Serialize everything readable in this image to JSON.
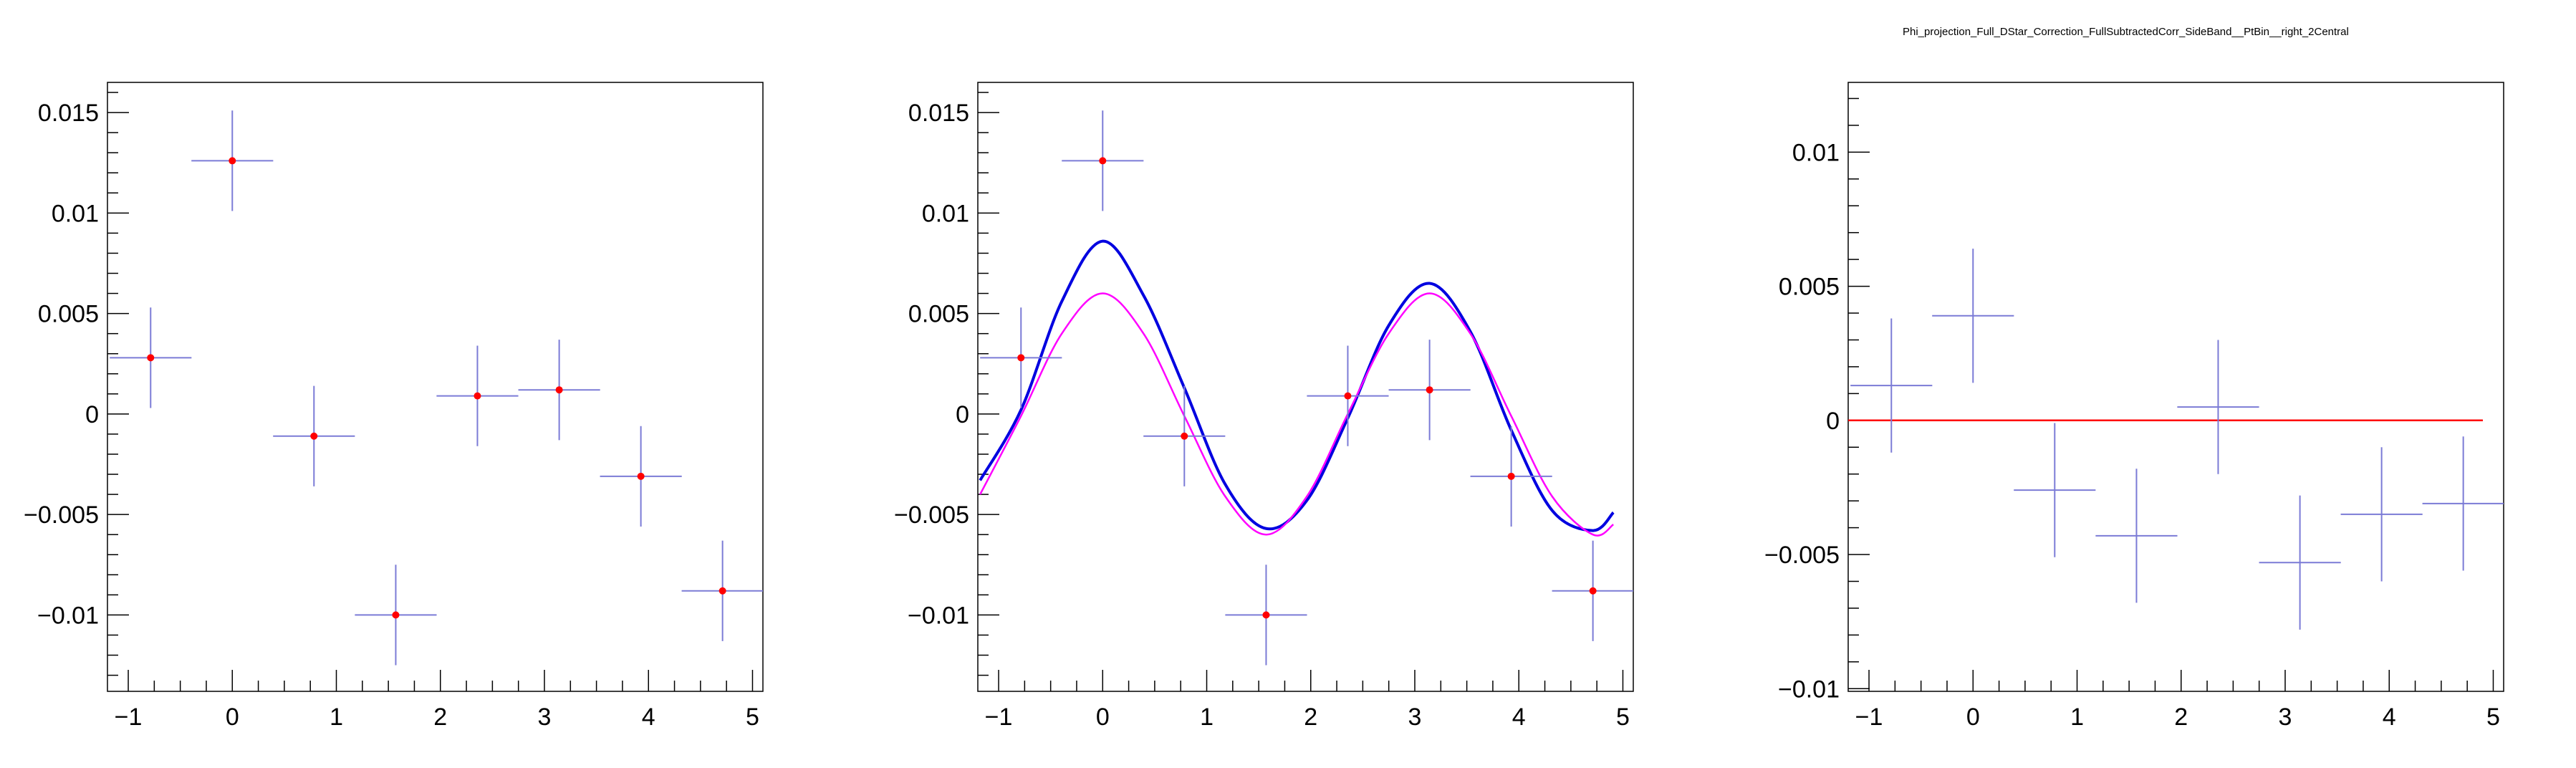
{
  "page_title": "Phi_projection_Full_DStar_Correction_FullSubtractedCorr_SideBand__PtBin__right_2Central",
  "colors": {
    "error_bar": "#7b7bd6",
    "marker": "#ff0000",
    "fit_total": "#0000e0",
    "fit_component": "#ff00ff",
    "zero_line": "#ff0000",
    "frame": "#000000"
  },
  "chart_data": [
    {
      "type": "scatter",
      "title": "",
      "xlabel": "",
      "ylabel": "",
      "xlim": [
        -1.2,
        5.1
      ],
      "ylim": [
        -0.0138,
        0.0165
      ],
      "xticks": [
        -1,
        0,
        1,
        2,
        3,
        4,
        5
      ],
      "xtick_labels": [
        "−1",
        "0",
        "1",
        "2",
        "3",
        "4",
        "5"
      ],
      "yticks": [
        -0.01,
        -0.005,
        0,
        0.005,
        0.01,
        0.015
      ],
      "ytick_labels": [
        "−0.01",
        "−0.005",
        "0",
        "0.005",
        "0.01",
        "0.015"
      ],
      "grid": false,
      "series": [
        {
          "x": [
            -0.785,
            0.0,
            0.785,
            1.571,
            2.356,
            3.142,
            3.927,
            4.712
          ],
          "y": [
            0.0028,
            0.0126,
            -0.0011,
            -0.01,
            0.0009,
            0.0012,
            -0.0031,
            -0.0088
          ],
          "xerr": 0.393,
          "yerr": [
            0.0025,
            0.0025,
            0.0025,
            0.0025,
            0.0025,
            0.0025,
            0.0025,
            0.0025
          ],
          "markers": true
        }
      ]
    },
    {
      "type": "line",
      "title": "",
      "xlabel": "",
      "ylabel": "",
      "xlim": [
        -1.2,
        5.1
      ],
      "ylim": [
        -0.0138,
        0.0165
      ],
      "xticks": [
        -1,
        0,
        1,
        2,
        3,
        4,
        5
      ],
      "xtick_labels": [
        "−1",
        "0",
        "1",
        "2",
        "3",
        "4",
        "5"
      ],
      "yticks": [
        -0.01,
        -0.005,
        0,
        0.005,
        0.01,
        0.015
      ],
      "ytick_labels": [
        "−0.01",
        "−0.005",
        "0",
        "0.005",
        "0.01",
        "0.015"
      ],
      "grid": false,
      "series": [
        {
          "x": [
            -0.785,
            0.0,
            0.785,
            1.571,
            2.356,
            3.142,
            3.927,
            4.712
          ],
          "y": [
            0.0028,
            0.0126,
            -0.0011,
            -0.01,
            0.0009,
            0.0012,
            -0.0031,
            -0.0088
          ],
          "xerr": 0.393,
          "yerr": [
            0.0025,
            0.0025,
            0.0025,
            0.0025,
            0.0025,
            0.0025,
            0.0025,
            0.0025
          ],
          "markers": true
        }
      ],
      "curves": [
        {
          "x": [
            -1.178,
            -0.785,
            -0.393,
            0.0,
            0.393,
            0.785,
            1.178,
            1.571,
            1.963,
            2.356,
            2.749,
            3.142,
            3.534,
            3.927,
            4.32,
            4.712,
            4.909
          ],
          "y": [
            -0.0033,
            0.0002,
            0.0056,
            0.0086,
            0.0059,
            0.0013,
            -0.0035,
            -0.0057,
            -0.0043,
            -0.0002,
            0.0044,
            0.0065,
            0.0041,
            -0.0008,
            -0.0048,
            -0.0058,
            -0.0049
          ],
          "color_key": "fit_total",
          "width": 4
        },
        {
          "x": [
            -1.178,
            -0.785,
            -0.393,
            0.0,
            0.393,
            0.785,
            1.178,
            1.571,
            1.963,
            2.356,
            2.749,
            3.142,
            3.534,
            3.927,
            4.32,
            4.712,
            4.909
          ],
          "y": [
            -0.004,
            -0.0001,
            0.004,
            0.006,
            0.004,
            -0.0001,
            -0.0041,
            -0.006,
            -0.0041,
            0.0,
            0.004,
            0.006,
            0.004,
            -0.0001,
            -0.0041,
            -0.006,
            -0.0055
          ],
          "color_key": "fit_component",
          "width": 2.5
        }
      ]
    },
    {
      "type": "scatter",
      "title": "",
      "xlabel": "",
      "ylabel": "",
      "xlim": [
        -1.2,
        5.1
      ],
      "ylim": [
        -0.0101,
        0.0126
      ],
      "xticks": [
        -1,
        0,
        1,
        2,
        3,
        4,
        5
      ],
      "xtick_labels": [
        "−1",
        "0",
        "1",
        "2",
        "3",
        "4",
        "5"
      ],
      "yticks": [
        -0.01,
        -0.005,
        0,
        0.005,
        0.01
      ],
      "ytick_labels": [
        "−0.01",
        "−0.005",
        "0",
        "0.005",
        "0.01"
      ],
      "grid": false,
      "hline": {
        "y": 0,
        "x_from": -1.2,
        "x_to": 4.9,
        "color_key": "zero_line"
      },
      "series": [
        {
          "x": [
            -0.785,
            0.0,
            0.785,
            1.571,
            2.356,
            3.142,
            3.927,
            4.712
          ],
          "y": [
            0.0013,
            0.0039,
            -0.0026,
            -0.0043,
            0.0005,
            -0.0053,
            -0.0035,
            -0.0031
          ],
          "xerr": 0.393,
          "yerr": [
            0.0025,
            0.0025,
            0.0025,
            0.0025,
            0.0025,
            0.0025,
            0.0025,
            0.0025
          ],
          "markers": false
        }
      ]
    }
  ]
}
